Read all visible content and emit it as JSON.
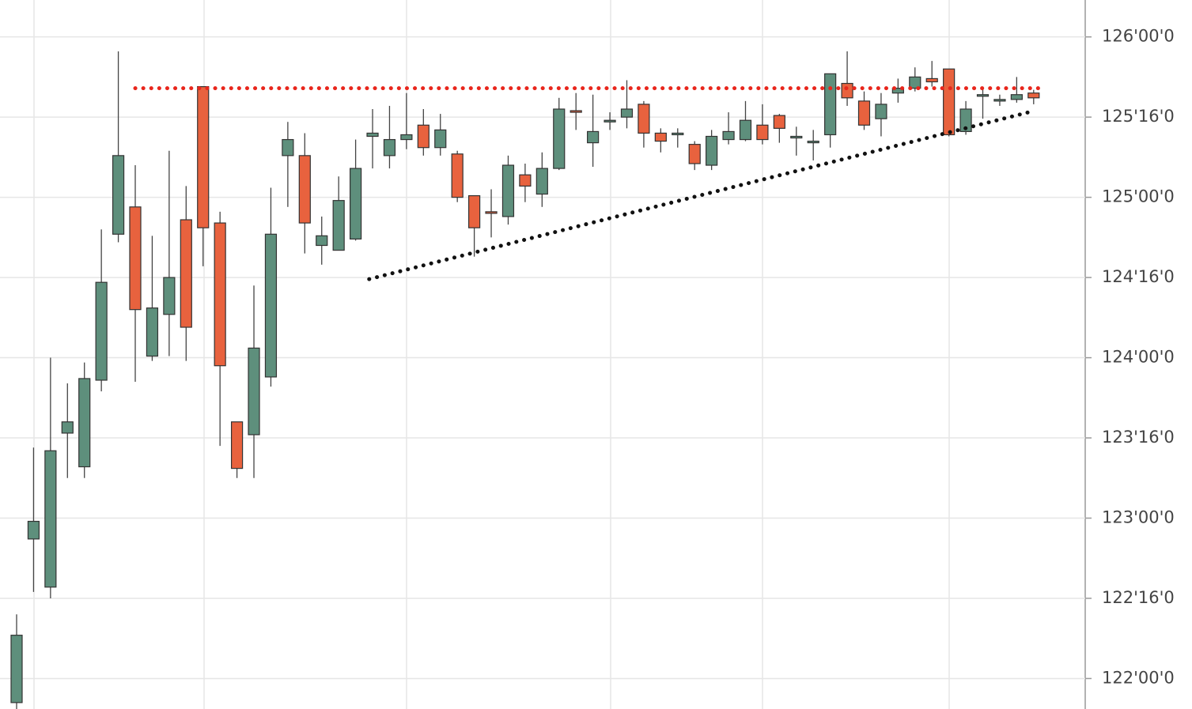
{
  "chart_data": {
    "type": "candlestick",
    "up_color": "#5e8f7c",
    "down_color": "#e8623e",
    "open": [
      121.85,
      122.87,
      122.57,
      123.53,
      123.32,
      123.86,
      124.77,
      124.94,
      124.01,
      124.27,
      124.86,
      125.69,
      124.84,
      123.6,
      123.52,
      123.88,
      125.26,
      125.26,
      124.7,
      124.67,
      124.74,
      125.38,
      125.26,
      125.36,
      125.45,
      125.31,
      125.27,
      125.01,
      124.91,
      124.88,
      125.14,
      125.02,
      125.18,
      125.54,
      125.34,
      125.47,
      125.5,
      125.58,
      125.4,
      125.39,
      125.33,
      125.2,
      125.36,
      125.36,
      125.45,
      125.51,
      125.37,
      125.34,
      125.39,
      125.71,
      125.6,
      125.49,
      125.65,
      125.68,
      125.74,
      125.8,
      125.41,
      125.63,
      125.6,
      125.61,
      125.65
    ],
    "high": [
      122.4,
      123.44,
      124.0,
      123.84,
      123.97,
      124.8,
      125.91,
      125.2,
      124.76,
      125.29,
      125.07,
      125.69,
      124.91,
      123.6,
      124.45,
      125.06,
      125.47,
      125.4,
      124.88,
      125.13,
      125.36,
      125.55,
      125.57,
      125.65,
      125.55,
      125.52,
      125.29,
      125.01,
      125.05,
      125.26,
      125.21,
      125.28,
      125.62,
      125.65,
      125.64,
      125.53,
      125.73,
      125.6,
      125.43,
      125.43,
      125.35,
      125.42,
      125.53,
      125.6,
      125.58,
      125.52,
      125.44,
      125.42,
      125.77,
      125.91,
      125.66,
      125.65,
      125.74,
      125.81,
      125.85,
      125.8,
      125.6,
      125.69,
      125.64,
      125.75,
      125.67
    ],
    "low": [
      121.8,
      122.54,
      122.5,
      123.25,
      123.25,
      123.79,
      124.72,
      123.85,
      123.98,
      124.01,
      123.98,
      124.57,
      123.45,
      123.25,
      123.25,
      123.82,
      124.94,
      124.65,
      124.58,
      124.67,
      124.73,
      125.18,
      125.18,
      125.3,
      125.26,
      125.26,
      124.97,
      124.63,
      124.75,
      124.83,
      124.97,
      124.94,
      125.17,
      125.42,
      125.19,
      125.42,
      125.43,
      125.31,
      125.28,
      125.31,
      125.17,
      125.17,
      125.33,
      125.35,
      125.33,
      125.34,
      125.26,
      125.23,
      125.31,
      125.57,
      125.42,
      125.38,
      125.59,
      125.66,
      125.69,
      125.38,
      125.39,
      125.49,
      125.57,
      125.59,
      125.58
    ],
    "close": [
      122.27,
      122.98,
      123.42,
      123.6,
      123.87,
      124.47,
      125.26,
      124.3,
      124.31,
      124.5,
      124.19,
      124.81,
      123.95,
      123.31,
      124.06,
      124.77,
      125.36,
      124.84,
      124.76,
      124.98,
      125.18,
      125.4,
      125.36,
      125.39,
      125.31,
      125.42,
      125.0,
      124.81,
      124.9,
      125.2,
      125.07,
      125.18,
      125.55,
      125.53,
      125.41,
      125.48,
      125.55,
      125.4,
      125.35,
      125.4,
      125.21,
      125.38,
      125.41,
      125.48,
      125.36,
      125.43,
      125.38,
      125.35,
      125.77,
      125.62,
      125.45,
      125.58,
      125.68,
      125.75,
      125.72,
      125.39,
      125.55,
      125.64,
      125.61,
      125.64,
      125.62
    ],
    "ylim": [
      121.81,
      126.23
    ],
    "yticks": [
      {
        "value": 126,
        "label": "126'00'0"
      },
      {
        "value": 125.5,
        "label": "125'16'0"
      },
      {
        "value": 125,
        "label": "125'00'0"
      },
      {
        "value": 124.5,
        "label": "124'16'0"
      },
      {
        "value": 124,
        "label": "124'00'0"
      },
      {
        "value": 123.5,
        "label": "123'16'0"
      },
      {
        "value": 123,
        "label": "123'00'0"
      },
      {
        "value": 122.5,
        "label": "122'16'0"
      },
      {
        "value": 122,
        "label": "122'00'0"
      }
    ],
    "grid": true,
    "trendlines": [
      {
        "color": "#e8261c",
        "x": [
          7,
          60.4
        ],
        "y": [
          125.68,
          125.68
        ]
      },
      {
        "color": "#111111",
        "x": [
          20.8,
          59.7
        ],
        "y": [
          124.49,
          125.53
        ]
      }
    ]
  }
}
